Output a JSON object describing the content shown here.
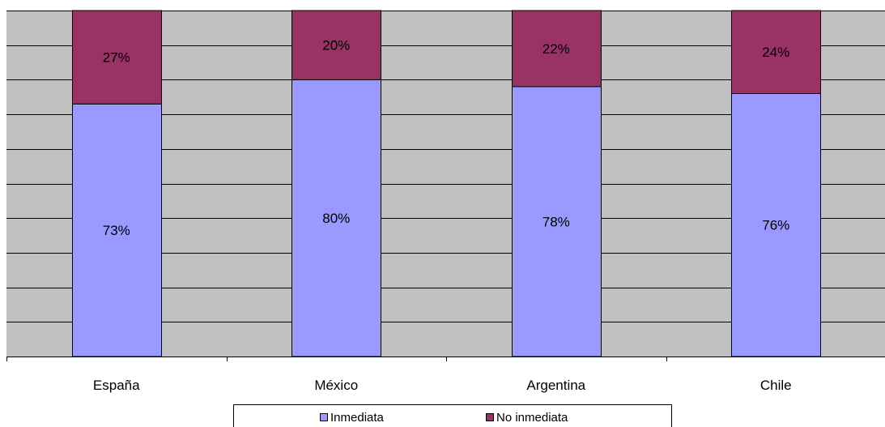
{
  "chart_data": {
    "type": "bar",
    "stacked": true,
    "percent": true,
    "categories": [
      "España",
      "México",
      "Argentina",
      "Chile"
    ],
    "series": [
      {
        "name": "Inmediata",
        "values": [
          73,
          80,
          78,
          76
        ],
        "labels": [
          "73%",
          "80%",
          "78%",
          "76%"
        ],
        "color": "#9999ff"
      },
      {
        "name": "No inmediata",
        "values": [
          27,
          20,
          22,
          24
        ],
        "labels": [
          "27%",
          "20%",
          "22%",
          "24%"
        ],
        "color": "#993366"
      }
    ],
    "ylim": [
      0,
      100
    ],
    "grid": true,
    "plot_background": "#c0c0c0",
    "legend_position": "bottom"
  }
}
